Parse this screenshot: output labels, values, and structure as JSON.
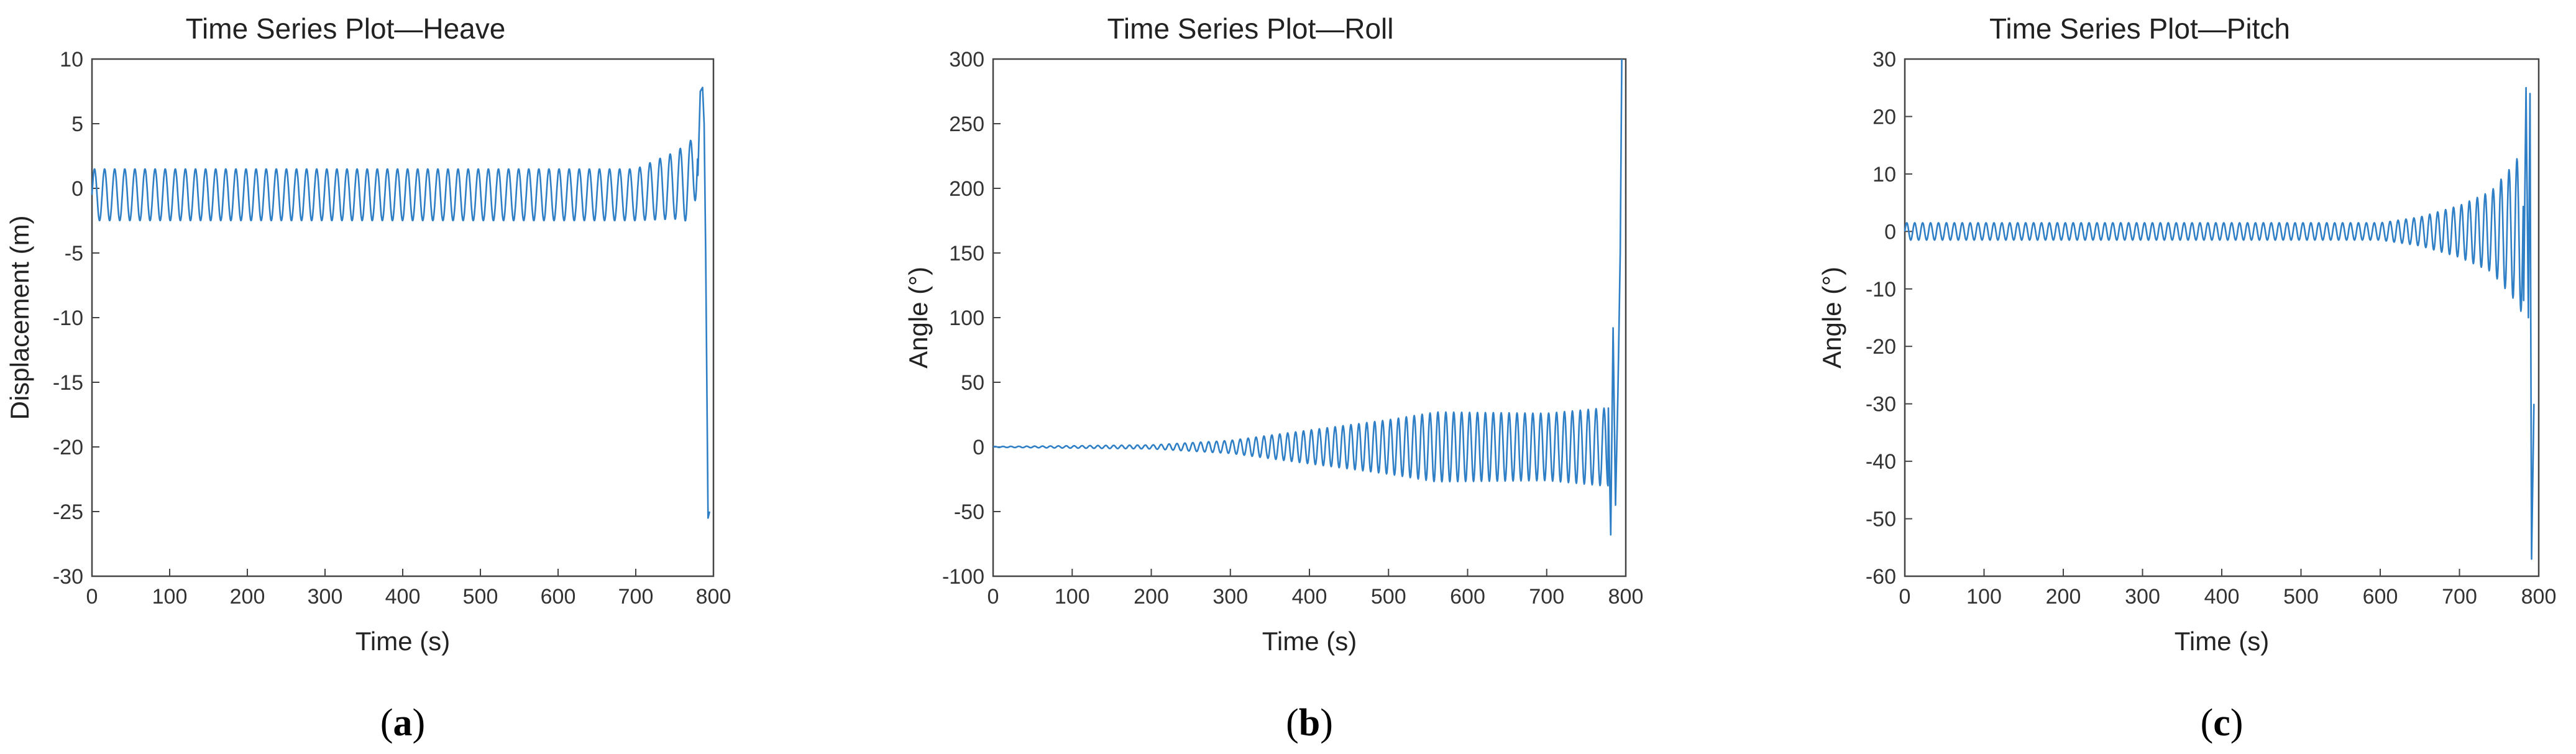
{
  "series_color": "#2f7fc6",
  "chart_data": [
    {
      "type": "line",
      "title": "Time Series Plot—Heave",
      "xlabel": "Time (s)",
      "ylabel": "Displacement (m)",
      "xlim": [
        0,
        800
      ],
      "ylim": [
        -30,
        10
      ],
      "xticks": [
        "0",
        "100",
        "200",
        "300",
        "400",
        "500",
        "600",
        "700",
        "800"
      ],
      "yticks": [
        "-30",
        "-25",
        "-20",
        "-15",
        "-10",
        "-5",
        "0",
        "5",
        "10"
      ],
      "grid": false,
      "caption_letter": "a",
      "series": [
        {
          "description": "oscillation about -0.5 m with amplitude ~2 m and period ~13 s until ~700 s; amplitude grows to ~3 m by 770 s; peaks at ~7.5 m near 785 s then drops to ~-25.5 m near 795 s",
          "period": 13,
          "keypoints": [
            [
              0,
              -0.5
            ],
            [
              700,
              -0.5
            ],
            [
              770,
              0.5
            ],
            [
              785,
              4.5
            ],
            [
              795,
              -25.5
            ]
          ],
          "amplitude": [
            [
              0,
              2.0
            ],
            [
              600,
              2.0
            ],
            [
              700,
              2.0
            ],
            [
              750,
              2.6
            ],
            [
              775,
              3.2
            ]
          ],
          "events": [
            [
              780,
              1.0
            ],
            [
              783,
              7.5
            ],
            [
              786,
              7.8
            ],
            [
              788,
              5.0
            ],
            [
              790,
              -5.0
            ],
            [
              793,
              -25.5
            ],
            [
              795,
              -25.0
            ]
          ]
        }
      ]
    },
    {
      "type": "line",
      "title": "Time Series Plot—Roll",
      "xlabel": "Time (s)",
      "ylabel": "Angle (°)",
      "xlim": [
        0,
        800
      ],
      "ylim": [
        -100,
        300
      ],
      "xticks": [
        "0",
        "100",
        "200",
        "300",
        "400",
        "500",
        "600",
        "700",
        "800"
      ],
      "yticks": [
        "-100",
        "-50",
        "0",
        "50",
        "100",
        "150",
        "200",
        "250",
        "300"
      ],
      "grid": false,
      "caption_letter": "b",
      "series": [
        {
          "description": "oscillation about 0° with amplitude near 0 until ~200 s, growing to ~25-30° by 550 s, roughly constant to 770 s, spikes ~90° and ~-70° near 785 s, then shoots to 300° near 795 s",
          "period": 10,
          "amplitude": [
            [
              0,
              0.3
            ],
            [
              200,
              1.5
            ],
            [
              300,
              5
            ],
            [
              400,
              13
            ],
            [
              500,
              21
            ],
            [
              560,
              27
            ],
            [
              700,
              26
            ],
            [
              770,
              30
            ]
          ],
          "events": [
            [
              778,
              30
            ],
            [
              781,
              -68
            ],
            [
              784,
              92
            ],
            [
              787,
              -45
            ],
            [
              790,
              40
            ],
            [
              793,
              150
            ],
            [
              795,
              300
            ]
          ]
        }
      ]
    },
    {
      "type": "line",
      "title": "Time Series Plot—Pitch",
      "xlabel": "Time (s)",
      "ylabel": "Angle (°)",
      "xlim": [
        0,
        800
      ],
      "ylim": [
        -60,
        30
      ],
      "xticks": [
        "0",
        "100",
        "200",
        "300",
        "400",
        "500",
        "600",
        "700",
        "800"
      ],
      "yticks": [
        "-60",
        "-50",
        "-40",
        "-30",
        "-20",
        "-10",
        "0",
        "10",
        "20",
        "30"
      ],
      "grid": false,
      "caption_letter": "c",
      "series": [
        {
          "description": "oscillation about 0° with amplitude ~1.5° until ~600 s, growing to ~13° by 775 s, spikes to ~25° then ~-57° near 790 s",
          "period": 10,
          "amplitude": [
            [
              0,
              1.5
            ],
            [
              600,
              1.5
            ],
            [
              650,
              2.5
            ],
            [
              700,
              4.5
            ],
            [
              740,
              7
            ],
            [
              770,
              12
            ],
            [
              778,
              14
            ]
          ],
          "events": [
            [
              781,
              -12
            ],
            [
              784,
              25
            ],
            [
              787,
              -15
            ],
            [
              789,
              24
            ],
            [
              791,
              -57
            ],
            [
              794,
              -30
            ]
          ]
        }
      ]
    }
  ]
}
